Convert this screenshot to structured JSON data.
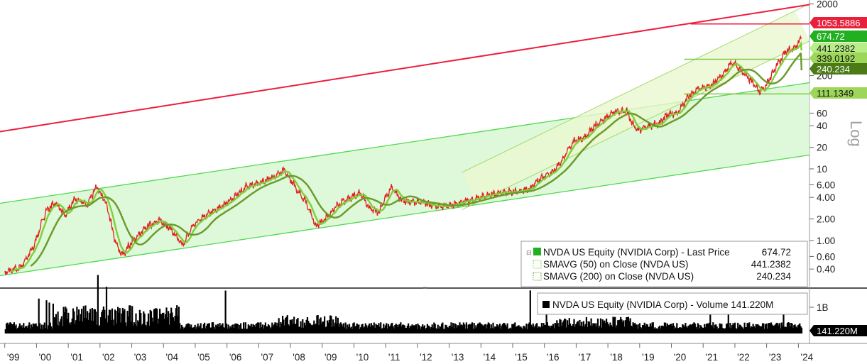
{
  "chart_data": {
    "type": "line",
    "scale": "log",
    "x_ticks": [
      "'99",
      "'00",
      "'01",
      "'02",
      "'03",
      "'04",
      "'05",
      "'06",
      "'07",
      "'08",
      "'09",
      "'10",
      "'11",
      "'12",
      "'13",
      "'14",
      "'15",
      "'16",
      "'17",
      "'18",
      "'19",
      "'20",
      "'21",
      "'22",
      "'23",
      "'24"
    ],
    "y_ticks": [
      "2000",
      "200",
      "60",
      "40",
      "20",
      "10",
      "6.00",
      "4.00",
      "2.00",
      "1.00",
      "0.60",
      "0.40"
    ],
    "y_tick_values": [
      2000,
      200,
      60,
      40,
      20,
      10,
      6,
      4,
      2,
      1,
      0.6,
      0.4
    ],
    "axis_label": "Log",
    "price_tags": [
      {
        "label": "1053.5886",
        "value": 1053.5886,
        "bg": "#e8203c",
        "fg": "#ffffff"
      },
      {
        "label": "674.72",
        "value": 674.72,
        "bg": "#22b022",
        "fg": "#ffffff"
      },
      {
        "label": "441.2382",
        "value": 441.2382,
        "bg": "#b8ee88",
        "fg": "#111111"
      },
      {
        "label": "339.0192",
        "value": 339.0192,
        "bg": "#9ed65a",
        "fg": "#111111"
      },
      {
        "label": "240.234",
        "value": 240.234,
        "bg": "#4b7a17",
        "fg": "#ffffff"
      },
      {
        "label": "111.1349",
        "value": 111.1349,
        "bg": "#9ed65a",
        "fg": "#111111"
      }
    ],
    "series": [
      {
        "name": "NVDA US Equity (NVIDIA Corp) - Last Price",
        "last": "674.72",
        "color": "#e02020",
        "points": [
          [
            1999.0,
            0.36
          ],
          [
            1999.5,
            0.42
          ],
          [
            1999.9,
            0.8
          ],
          [
            2000.3,
            2.6
          ],
          [
            2000.6,
            3.4
          ],
          [
            2000.9,
            2.2
          ],
          [
            2001.2,
            3.8
          ],
          [
            2001.6,
            3.2
          ],
          [
            2001.9,
            5.8
          ],
          [
            2002.2,
            3.2
          ],
          [
            2002.5,
            0.9
          ],
          [
            2002.7,
            0.62
          ],
          [
            2003.0,
            0.95
          ],
          [
            2003.3,
            1.3
          ],
          [
            2003.6,
            1.7
          ],
          [
            2003.9,
            1.9
          ],
          [
            2004.2,
            1.5
          ],
          [
            2004.6,
            0.85
          ],
          [
            2004.9,
            1.55
          ],
          [
            2005.2,
            2.1
          ],
          [
            2005.6,
            2.6
          ],
          [
            2005.9,
            3.1
          ],
          [
            2006.3,
            4.3
          ],
          [
            2006.6,
            5.6
          ],
          [
            2007.0,
            6.3
          ],
          [
            2007.4,
            7.5
          ],
          [
            2007.8,
            9.5
          ],
          [
            2008.2,
            5.2
          ],
          [
            2008.5,
            3.4
          ],
          [
            2008.8,
            1.6
          ],
          [
            2009.1,
            2.0
          ],
          [
            2009.5,
            3.2
          ],
          [
            2009.9,
            4.0
          ],
          [
            2010.2,
            4.6
          ],
          [
            2010.5,
            2.8
          ],
          [
            2010.8,
            2.5
          ],
          [
            2011.0,
            4.0
          ],
          [
            2011.2,
            5.6
          ],
          [
            2011.5,
            3.6
          ],
          [
            2011.8,
            3.4
          ],
          [
            2012.1,
            3.5
          ],
          [
            2012.4,
            3.1
          ],
          [
            2012.8,
            3.0
          ],
          [
            2013.2,
            3.2
          ],
          [
            2013.6,
            3.6
          ],
          [
            2014.0,
            4.0
          ],
          [
            2014.5,
            4.6
          ],
          [
            2015.0,
            4.8
          ],
          [
            2015.5,
            5.1
          ],
          [
            2015.9,
            7.5
          ],
          [
            2016.3,
            9.5
          ],
          [
            2016.6,
            14
          ],
          [
            2016.9,
            24
          ],
          [
            2017.3,
            28
          ],
          [
            2017.6,
            40
          ],
          [
            2017.9,
            50
          ],
          [
            2018.2,
            62
          ],
          [
            2018.6,
            64
          ],
          [
            2018.8,
            40
          ],
          [
            2018.95,
            34
          ],
          [
            2019.3,
            40
          ],
          [
            2019.6,
            42
          ],
          [
            2019.9,
            58
          ],
          [
            2020.2,
            60
          ],
          [
            2020.5,
            98
          ],
          [
            2020.8,
            130
          ],
          [
            2021.2,
            140
          ],
          [
            2021.6,
            200
          ],
          [
            2021.9,
            310
          ],
          [
            2022.1,
            260
          ],
          [
            2022.5,
            170
          ],
          [
            2022.8,
            120
          ],
          [
            2023.0,
            150
          ],
          [
            2023.3,
            270
          ],
          [
            2023.6,
            440
          ],
          [
            2023.9,
            480
          ],
          [
            2024.1,
            674.72
          ]
        ]
      },
      {
        "name": "SMAVG (50) on Close (NVDA US)",
        "last": "441.2382",
        "color": "#7fcf3a"
      },
      {
        "name": "SMAVG (200) on Close (NVDA US)",
        "last": "240.234",
        "color": "#6a9a2a"
      }
    ],
    "volume": {
      "name": "NVDA US Equity (NVIDIA Corp) - Volume",
      "last": "141.220M",
      "y_tick": "1B",
      "y_tick_value": 1000
    }
  },
  "legend": {
    "rows": [
      {
        "text": "NVDA US Equity (NVIDIA Corp) - Last Price",
        "value": "674.72"
      },
      {
        "text": "SMAVG (50)  on Close (NVDA US)",
        "value": "441.2382"
      },
      {
        "text": "SMAVG (200)  on Close (NVDA US)",
        "value": "240.234"
      }
    ]
  },
  "volume_legend": {
    "text": "NVDA US Equity (NVIDIA Corp) - Volume 141.220M"
  },
  "colors": {
    "price": "#e02020",
    "channel_fill": "#d8f8d2",
    "channel_line": "#4fd84f",
    "upper_trend": "#ee1d3f",
    "sma50": "#7fcf3a",
    "sma200": "#6a9a2a",
    "volume": "#000000"
  }
}
